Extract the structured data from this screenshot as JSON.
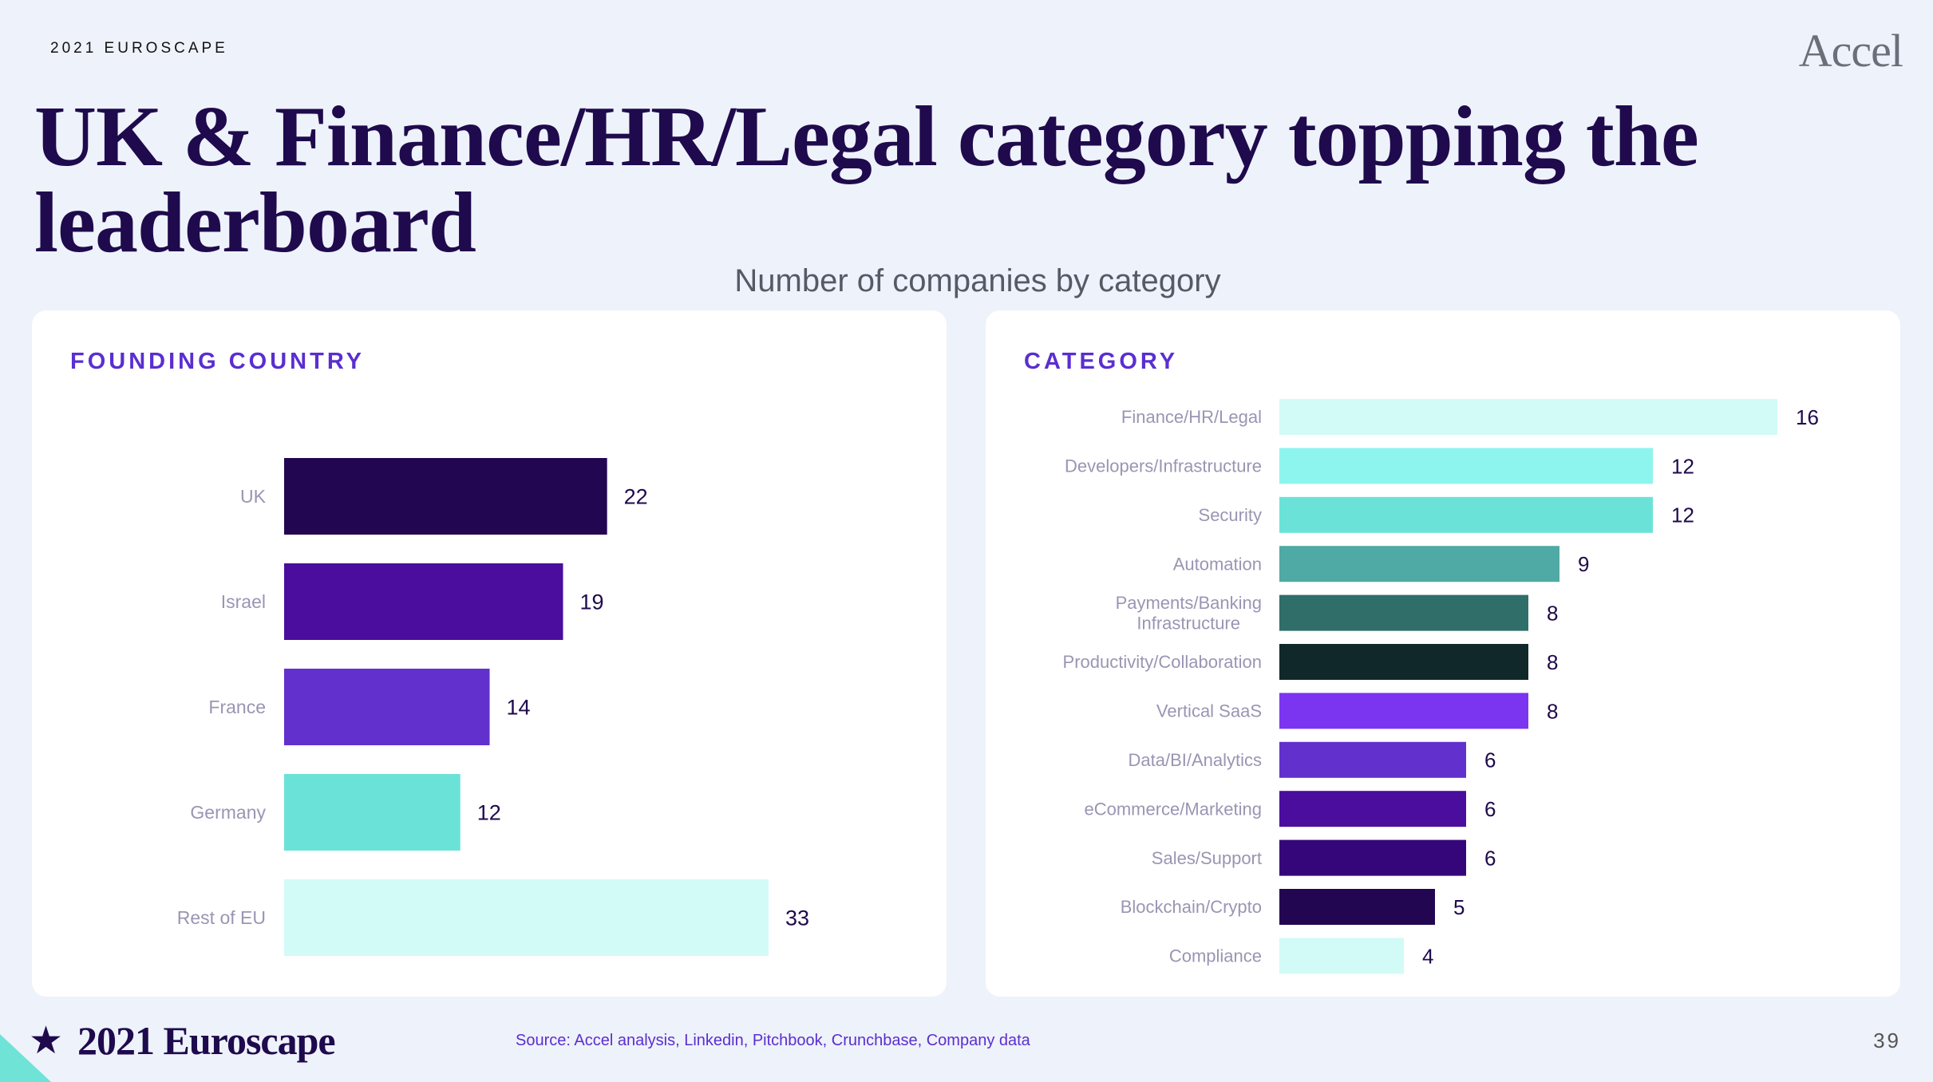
{
  "header": {
    "eyebrow": "2021 EUROSCAPE",
    "brand": "Accel",
    "headline": "UK & Finance/HR/Legal category topping the leaderboard",
    "subtitle": "Number of companies by category"
  },
  "footer": {
    "brand": "2021 Euroscape",
    "source": "Source: Accel analysis, Linkedin, Pitchbook, Crunchbase, Company data",
    "page": "39"
  },
  "chart_data": [
    {
      "type": "bar",
      "orientation": "horizontal",
      "title": "FOUNDING COUNTRY",
      "categories": [
        "UK",
        "Israel",
        "France",
        "Germany",
        "Rest of EU"
      ],
      "values": [
        22,
        19,
        14,
        12,
        33
      ],
      "colors": [
        "#230651",
        "#4a0d9e",
        "#6230cd",
        "#6be2d8",
        "#d2fbf7"
      ],
      "xlim": [
        0,
        33
      ],
      "grid": false,
      "legend": "none"
    },
    {
      "type": "bar",
      "orientation": "horizontal",
      "title": "CATEGORY",
      "categories": [
        "Finance/HR/Legal",
        "Developers/Infrastructure",
        "Security",
        "Automation",
        "Payments/Banking\nInfrastructure",
        "Productivity/Collaboration",
        "Vertical SaaS",
        "Data/BI/Analytics",
        "eCommerce/Marketing",
        "Sales/Support",
        "Blockchain/Crypto",
        "Compliance"
      ],
      "values": [
        16,
        12,
        12,
        9,
        8,
        8,
        8,
        6,
        6,
        6,
        5,
        4
      ],
      "colors": [
        "#d2fbf7",
        "#8ef5ee",
        "#6be2d8",
        "#4fa9a4",
        "#2f6e69",
        "#10282a",
        "#7b35f0",
        "#6230cd",
        "#4a0d9e",
        "#35067a",
        "#230651",
        "#d2fbf7"
      ],
      "xlim": [
        0,
        16
      ],
      "grid": false,
      "legend": "none"
    }
  ]
}
